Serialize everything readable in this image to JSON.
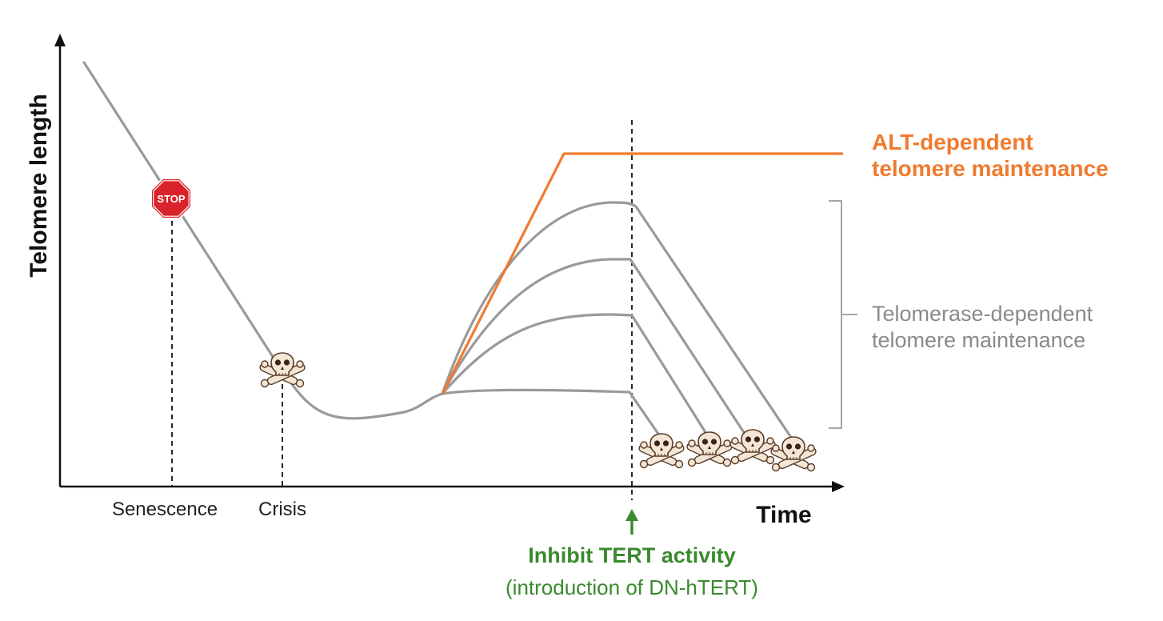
{
  "axes": {
    "y_label": "Telomere length",
    "x_label": "Time"
  },
  "events": {
    "senescence": "Senescence",
    "crisis": "Crisis",
    "stop_sign": "STOP"
  },
  "legend": {
    "alt_line1": "ALT-dependent",
    "alt_line2": "telomere maintenance",
    "telomerase_line1": "Telomerase-dependent",
    "telomerase_line2": "telomere maintenance"
  },
  "intervention": {
    "title": "Inhibit TERT activity",
    "subtitle": "(introduction of DN-hTERT)"
  },
  "colors": {
    "axis": "#111111",
    "curve": "#9a9a9a",
    "alt": "#ef7b2f",
    "inhibit": "#3a8a2e",
    "stop": "#d8232a"
  },
  "icons": {
    "stop": "stop-sign-icon",
    "death": "skull-crossbones-icon"
  }
}
